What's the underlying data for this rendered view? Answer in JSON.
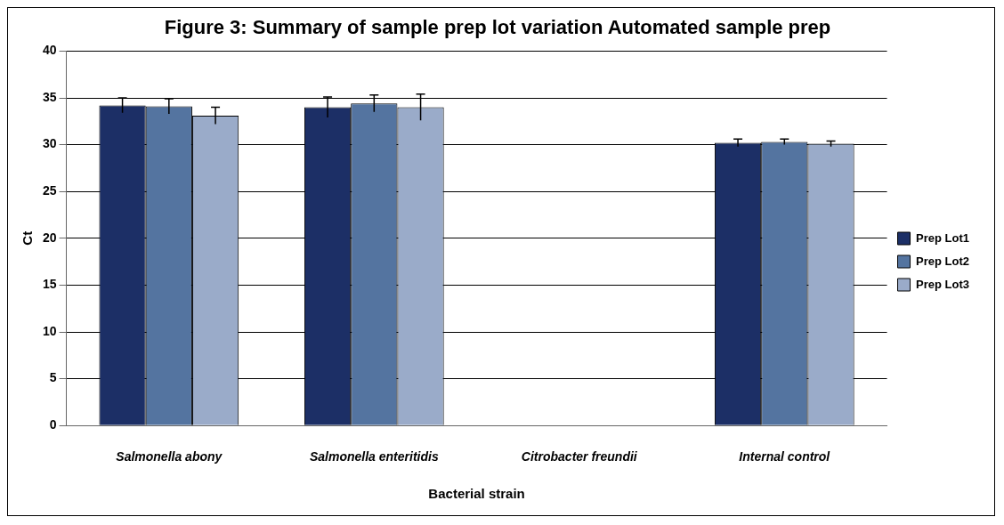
{
  "chart_data": {
    "type": "bar",
    "title": "Figure 3: Summary of sample prep lot variation Automated sample prep",
    "xlabel": "Bacterial strain",
    "ylabel": "Ct",
    "categories": [
      "Salmonella abony",
      "Salmonella enteritidis",
      "Citrobacter freundii",
      "Internal control"
    ],
    "series": [
      {
        "name": "Prep Lot1",
        "color": "#1c2f66",
        "values": [
          34.2,
          34.0,
          0,
          30.2
        ],
        "errors": [
          0.8,
          1.1,
          null,
          0.4
        ]
      },
      {
        "name": "Prep Lot2",
        "color": "#5474a0",
        "values": [
          34.1,
          34.4,
          0,
          30.3
        ],
        "errors": [
          0.8,
          0.9,
          null,
          0.3
        ]
      },
      {
        "name": "Prep Lot3",
        "color": "#9aabc9",
        "values": [
          33.1,
          34.0,
          0,
          30.1
        ],
        "errors": [
          0.9,
          1.4,
          null,
          0.3
        ]
      }
    ],
    "ylim": [
      0,
      40
    ],
    "yticks": [
      0,
      5,
      10,
      15,
      20,
      25,
      30,
      35,
      40
    ],
    "grid": "y",
    "legend": "right"
  }
}
